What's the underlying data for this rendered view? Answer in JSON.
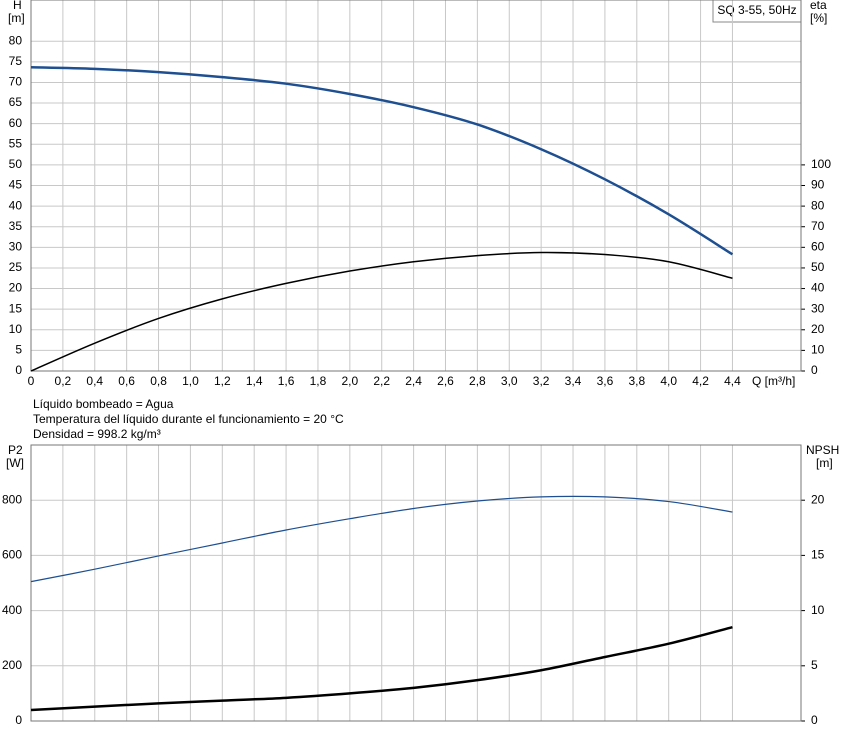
{
  "chart_data": [
    {
      "type": "line",
      "label": "SQ 3-55, 50Hz",
      "ylabel": "H",
      "yunit": "[m]",
      "y2label": "eta",
      "y2unit": "[%]",
      "xlabel": "Q [m³/h]",
      "xlim": [
        0,
        4.83
      ],
      "xticks": [
        0,
        {
          "value": 0.2,
          "label": "0,2"
        },
        {
          "value": 0.4,
          "label": "0,4"
        },
        {
          "value": 0.6,
          "label": "0,6"
        },
        {
          "value": 0.8,
          "label": "0,8"
        },
        {
          "value": 1.0,
          "label": "1,0"
        },
        {
          "value": 1.2,
          "label": "1,2"
        },
        {
          "value": 1.4,
          "label": "1,4"
        },
        {
          "value": 1.6,
          "label": "1,6"
        },
        {
          "value": 1.8,
          "label": "1,8"
        },
        {
          "value": 2.0,
          "label": "2,0"
        },
        {
          "value": 2.2,
          "label": "2,2"
        },
        {
          "value": 2.4,
          "label": "2,4"
        },
        {
          "value": 2.6,
          "label": "2,6"
        },
        {
          "value": 2.8,
          "label": "2,8"
        },
        {
          "value": 3.0,
          "label": "3,0"
        },
        {
          "value": 3.2,
          "label": "3,2"
        },
        {
          "value": 3.4,
          "label": "3,4"
        },
        {
          "value": 3.6,
          "label": "3,6"
        },
        {
          "value": 3.8,
          "label": "3,8"
        },
        {
          "value": 4.0,
          "label": "4,0"
        },
        {
          "value": 4.2,
          "label": "4,2"
        },
        {
          "value": 4.4,
          "label": "4,4"
        }
      ],
      "ylim": [
        0,
        90
      ],
      "yticks": [
        0,
        5,
        10,
        15,
        20,
        25,
        30,
        35,
        40,
        45,
        50,
        55,
        60,
        65,
        70,
        75,
        80
      ],
      "y2lim": [
        0,
        180
      ],
      "y2ticks": [
        0,
        10,
        20,
        30,
        40,
        50,
        60,
        70,
        80,
        90,
        100
      ],
      "grid": true,
      "x": [
        0,
        0.4,
        0.8,
        1.2,
        1.6,
        2.0,
        2.4,
        2.8,
        3.2,
        3.6,
        4.0,
        4.4
      ],
      "series": [
        {
          "color": "#1d4f91",
          "values": [
            73.7,
            73.3,
            72.5,
            71.3,
            69.7,
            67.2,
            64,
            59.8,
            53.8,
            46.5,
            38,
            28.3
          ]
        },
        {
          "color": "#000000",
          "axis": "y2",
          "values": [
            0,
            13.5,
            25.5,
            35,
            42.5,
            48.5,
            53,
            56,
            57.5,
            56.5,
            53,
            45
          ]
        }
      ],
      "annotations": [
        "Líquido bombeado = Agua",
        "Temperatura del líquido durante el funcionamiento = 20 °C",
        "Densidad = 998.2 kg/m³"
      ]
    },
    {
      "type": "line",
      "ylabel": "P2",
      "yunit": "[W]",
      "y2label": "NPSH",
      "y2unit": "[m]",
      "xlim": [
        0,
        4.83
      ],
      "ylim": [
        0,
        1000
      ],
      "yticks": [
        0,
        200,
        400,
        600,
        800
      ],
      "y2lim": [
        0,
        25
      ],
      "y2ticks": [
        0,
        5,
        10,
        15,
        20
      ],
      "grid": true,
      "x": [
        0,
        0.4,
        0.8,
        1.2,
        1.6,
        2.0,
        2.4,
        2.8,
        3.2,
        3.6,
        4.0,
        4.4
      ],
      "series": [
        {
          "color": "#1d4f91",
          "values": [
            505,
            550,
            598,
            645,
            692,
            733,
            770,
            797,
            812,
            812,
            795,
            757
          ]
        },
        {
          "color": "#000000",
          "axis": "y2",
          "values": [
            1,
            1.3,
            1.6,
            1.85,
            2.1,
            2.5,
            3.0,
            3.7,
            4.6,
            5.8,
            7.0,
            8.5
          ]
        }
      ]
    }
  ]
}
